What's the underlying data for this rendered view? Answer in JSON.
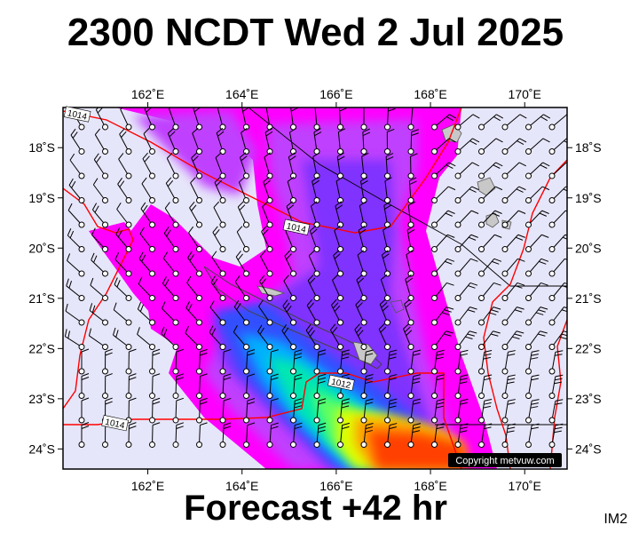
{
  "title": "2300 NCDT Wed 2 Jul 2025",
  "footer": "Forecast +42 hr",
  "product_code": "IM2",
  "copyright": "Copyright metvuw.com",
  "colors": {
    "background": "#e6e6fa",
    "land": "#c8c8c8",
    "isobar": "#ff0000",
    "boundary": "#000000",
    "wind_scale": [
      "#ff00ff",
      "#c000ff",
      "#8000ff",
      "#4040ff",
      "#0080ff",
      "#00c0ff",
      "#00ffc0",
      "#40ff40",
      "#c0ff00",
      "#ffff00",
      "#ffa000",
      "#ff4000"
    ]
  },
  "map": {
    "lon_range": [
      160.2,
      170.9
    ],
    "lat_range": [
      -24.4,
      -17.2
    ],
    "lon_ticks": [
      {
        "value": 162,
        "label": "162˚E"
      },
      {
        "value": 164,
        "label": "164˚E"
      },
      {
        "value": 166,
        "label": "166˚E"
      },
      {
        "value": 168,
        "label": "168˚E"
      },
      {
        "value": 170,
        "label": "170˚E"
      }
    ],
    "lat_ticks": [
      {
        "value": -18,
        "label": "18˚S"
      },
      {
        "value": -19,
        "label": "19˚S"
      },
      {
        "value": -20,
        "label": "20˚S"
      },
      {
        "value": -21,
        "label": "21˚S"
      },
      {
        "value": -22,
        "label": "22˚S"
      },
      {
        "value": -23,
        "label": "23˚S"
      },
      {
        "value": -24,
        "label": "24˚S"
      }
    ],
    "isobar_labels": [
      {
        "lon": 160.5,
        "lat": -17.35,
        "text": "1014"
      },
      {
        "lon": 165.15,
        "lat": -19.6,
        "text": "1014"
      },
      {
        "lon": 166.1,
        "lat": -22.7,
        "text": "1012"
      },
      {
        "lon": 161.3,
        "lat": -23.5,
        "text": "1014"
      }
    ]
  }
}
